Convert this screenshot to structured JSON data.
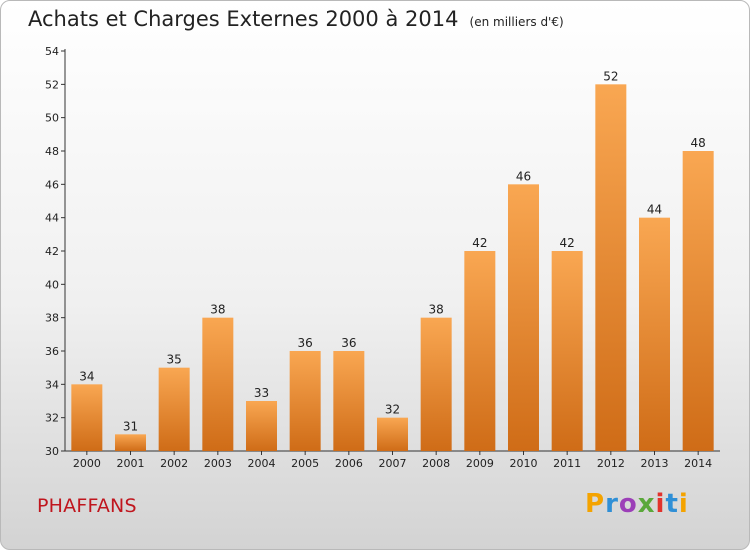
{
  "title": "Achats et Charges Externes 2000 à 2014",
  "unit_note": "(en milliers d'€)",
  "commune": "PHAFFANS",
  "logo": {
    "text": "Proxiti",
    "letters": [
      "P",
      "r",
      "o",
      "x",
      "i",
      "t",
      "i"
    ],
    "colors": [
      "#f4a300",
      "#2f8fd6",
      "#9c3fb8",
      "#5aa83a",
      "#e2322c",
      "#2f8fd6",
      "#f4a300"
    ]
  },
  "chart_data": {
    "type": "bar",
    "title": "Achats et Charges Externes 2000 à 2014",
    "subtitle": "(en milliers d'€)",
    "categories": [
      "2000",
      "2001",
      "2002",
      "2003",
      "2004",
      "2005",
      "2006",
      "2007",
      "2008",
      "2009",
      "2010",
      "2011",
      "2012",
      "2013",
      "2014"
    ],
    "values": [
      34,
      31,
      35,
      38,
      33,
      36,
      36,
      32,
      38,
      42,
      46,
      42,
      52,
      44,
      48
    ],
    "ylim": [
      30,
      54
    ],
    "yticks": [
      30,
      32,
      34,
      36,
      38,
      40,
      42,
      44,
      46,
      48,
      50,
      52,
      54
    ],
    "bar_color": "#f19e45",
    "grid": false,
    "legend": "none"
  }
}
